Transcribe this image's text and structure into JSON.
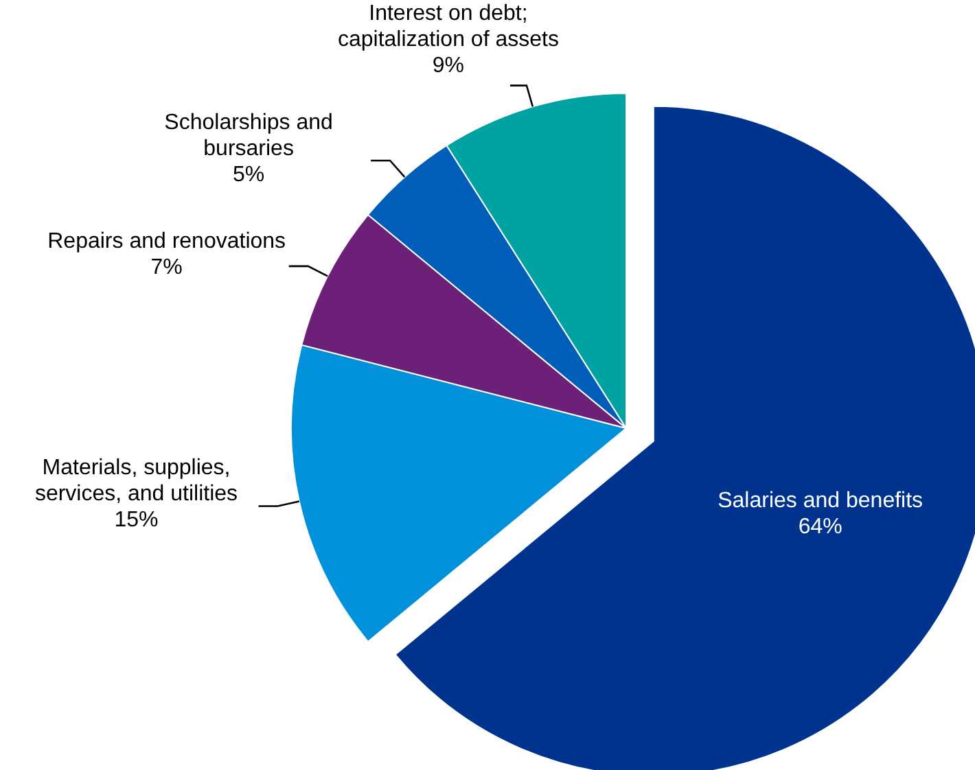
{
  "chart_data": {
    "type": "pie",
    "categories": [
      "Salaries and benefits",
      "Materials, supplies, services, and utilities",
      "Repairs and renovations",
      "Scholarships and bursaries",
      "Interest on debt; capitalization of assets"
    ],
    "values": [
      64,
      15,
      7,
      5,
      9
    ],
    "colors": [
      "#00338d",
      "#0091da",
      "#6d2077",
      "#005eb8",
      "#00a3a1"
    ],
    "value_labels": [
      "64%",
      "15%",
      "7%",
      "5%",
      "9%"
    ]
  }
}
